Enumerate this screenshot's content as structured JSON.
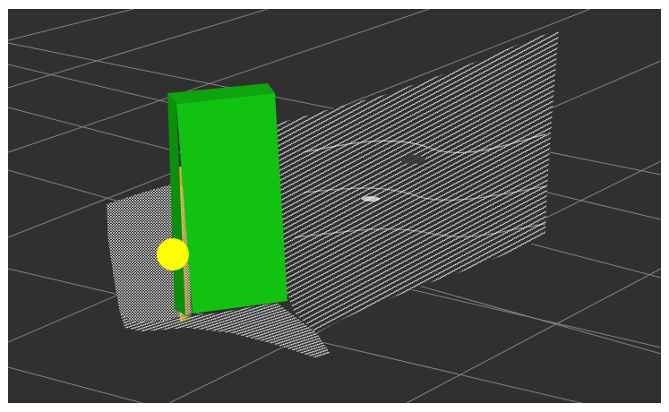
{
  "viewer": {
    "background_color": "#303030",
    "grid_color": "#9a9a9a",
    "point_color": "#ffffff",
    "marker_colors": {
      "box_front": "#11c211",
      "box_top": "#0fa30f",
      "box_side": "#0c8f0c",
      "sphere": "#ffff00",
      "highlight_points": "#e6c84a"
    }
  }
}
